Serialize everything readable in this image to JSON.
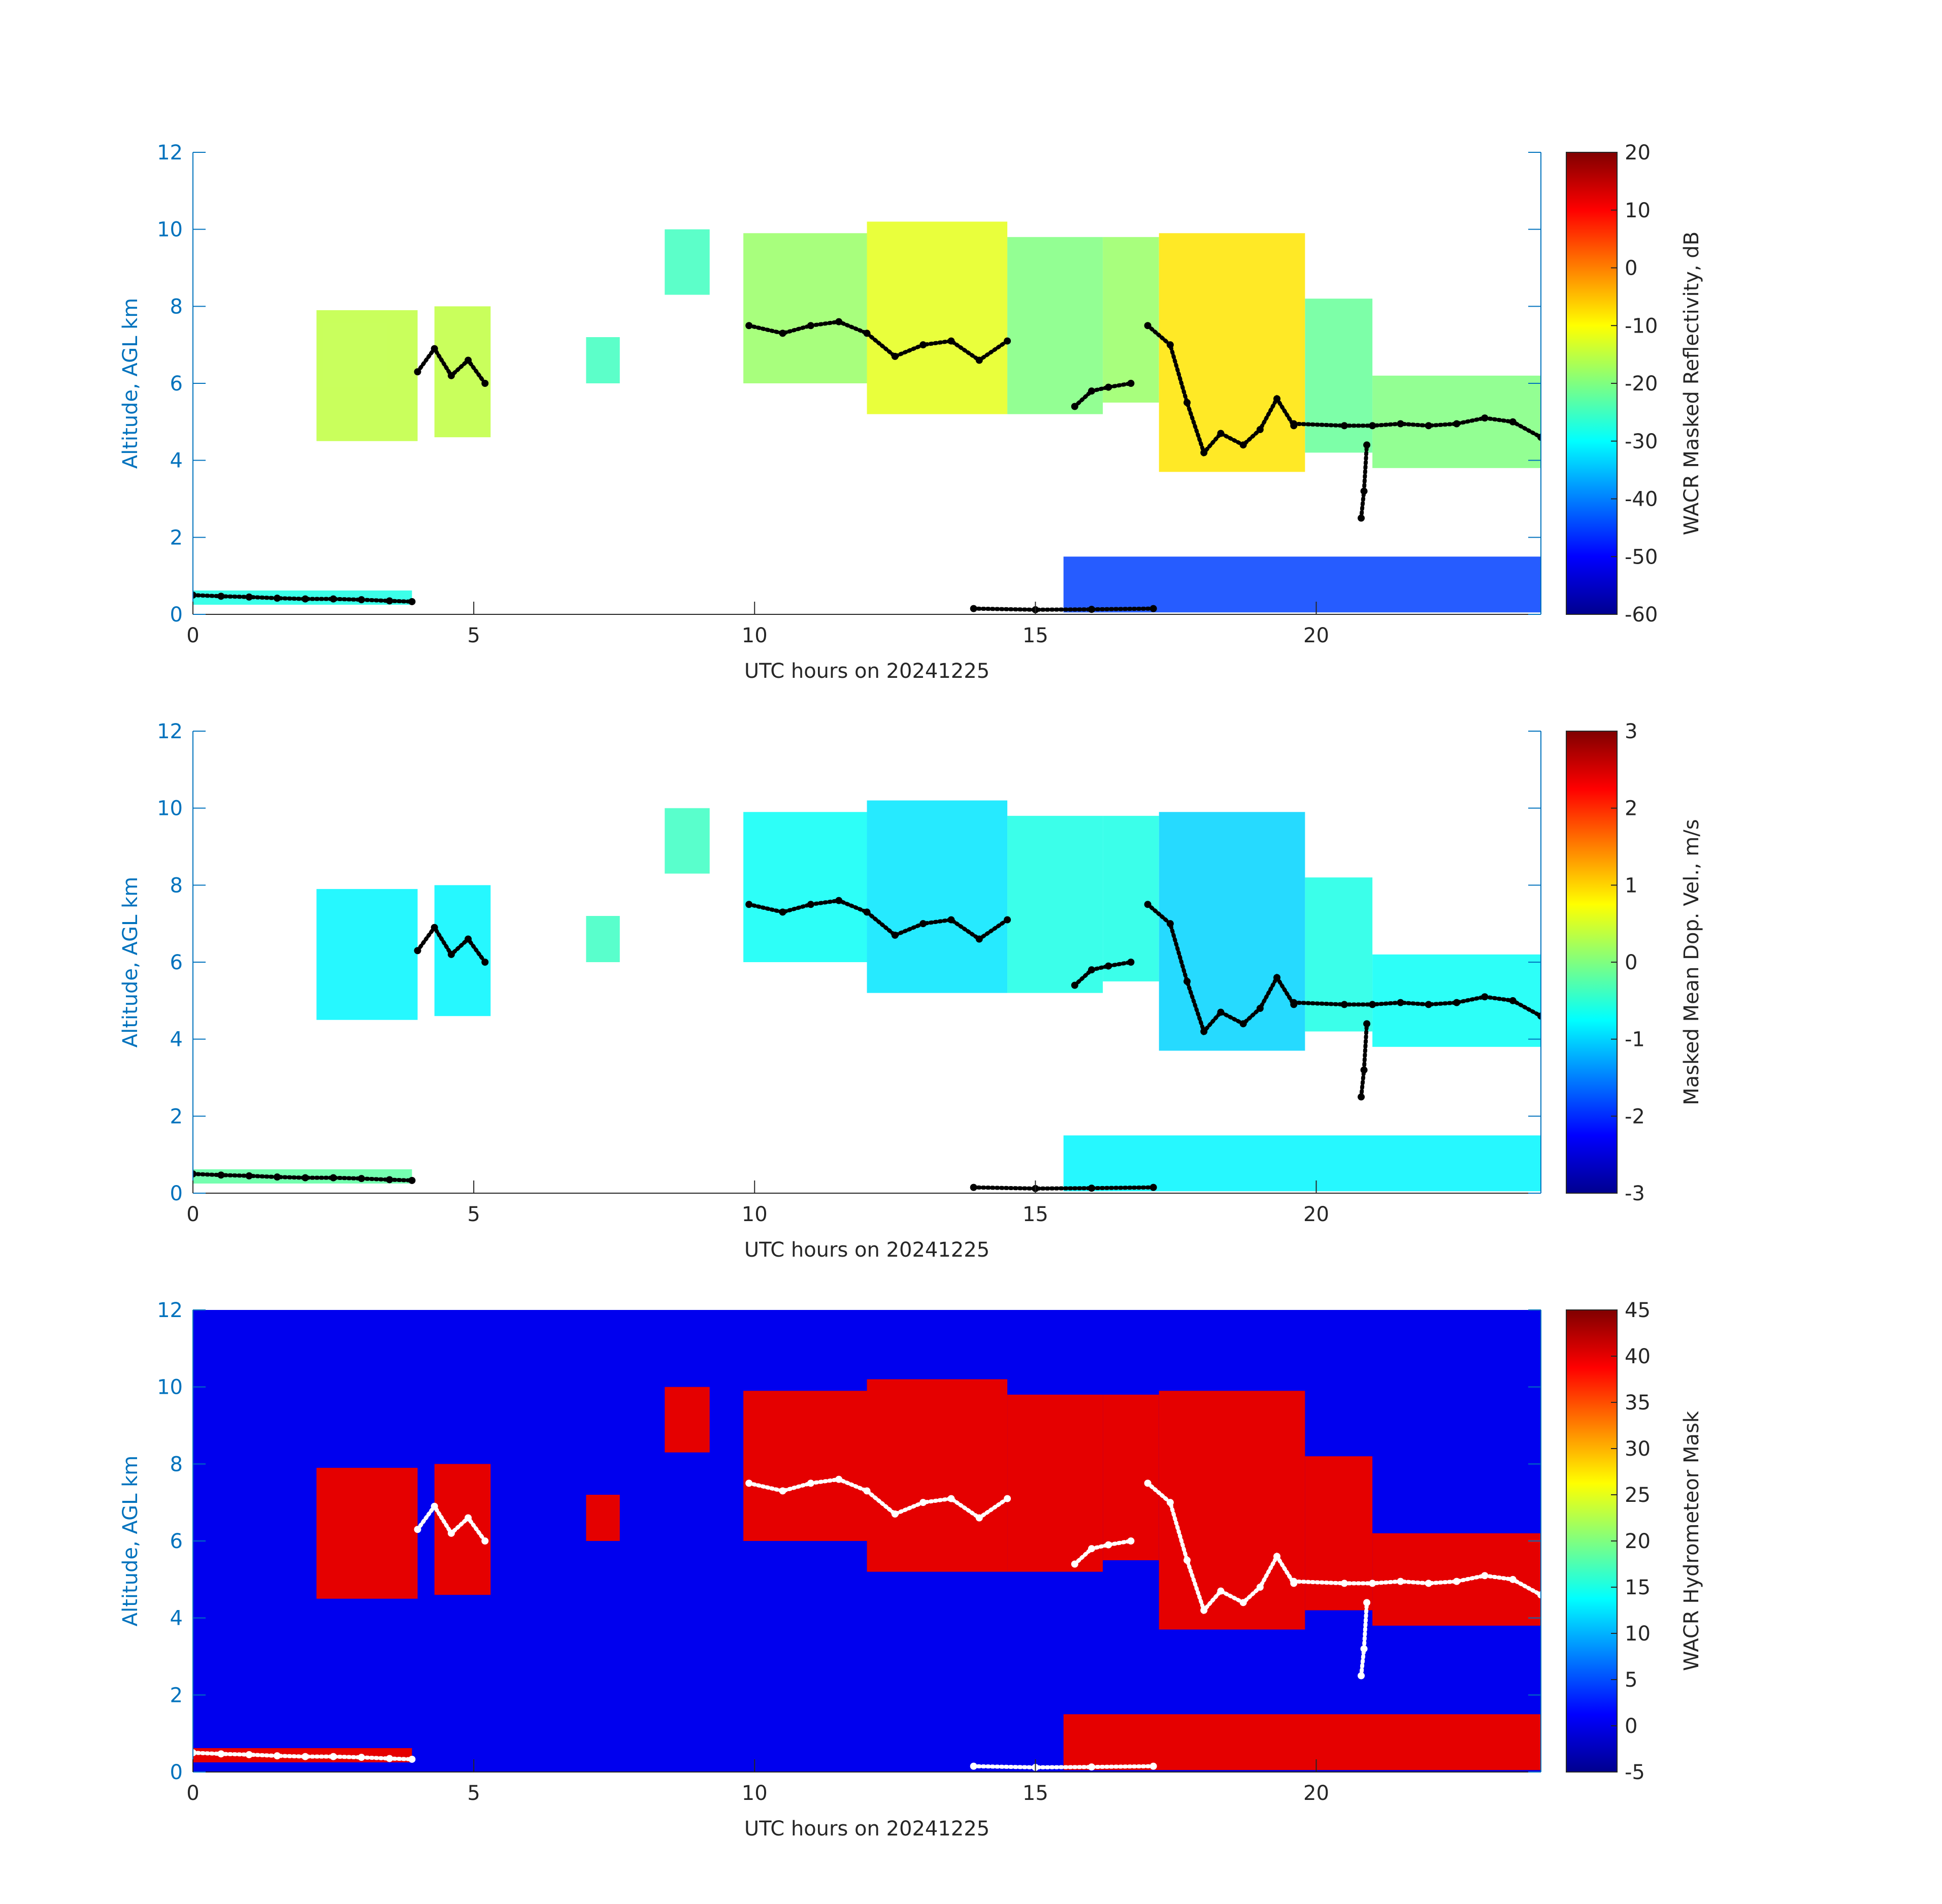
{
  "figure": {
    "colors": {
      "axis_blue": "#0072BD",
      "axis_black": "#262626",
      "mask_background": "#0000EE",
      "cloud_top_markers_dark": "#000000",
      "cloud_top_markers_light": "#FFFFFF"
    }
  },
  "chart_data": [
    {
      "type": "heatmap",
      "panel": "reflectivity",
      "xlabel": "UTC hours on 20241225",
      "ylabel": "Altitude, AGL km",
      "xlim": [
        0,
        24
      ],
      "ylim": [
        0,
        12
      ],
      "xticks": [
        0,
        5,
        10,
        15,
        20
      ],
      "yticks": [
        0,
        2,
        4,
        6,
        8,
        10,
        12
      ],
      "colorbar": {
        "label": "WACR Masked Reflectivity, dB",
        "colormap": "jet",
        "clim": [
          -60,
          20
        ],
        "ticks": [
          -60,
          -50,
          -40,
          -30,
          -20,
          -10,
          0,
          10,
          20
        ]
      },
      "cloud_regions": [
        {
          "x": [
            2.2,
            4.0
          ],
          "y": [
            4.5,
            7.9
          ],
          "value": -15
        },
        {
          "x": [
            4.3,
            5.3
          ],
          "y": [
            4.6,
            8.0
          ],
          "value": -15
        },
        {
          "x": [
            7.0,
            7.6
          ],
          "y": [
            6.0,
            7.2
          ],
          "value": -25
        },
        {
          "x": [
            8.4,
            9.2
          ],
          "y": [
            8.3,
            10.0
          ],
          "value": -25
        },
        {
          "x": [
            9.8,
            12.0
          ],
          "y": [
            6.0,
            9.9
          ],
          "value": -18
        },
        {
          "x": [
            12.0,
            14.5
          ],
          "y": [
            5.2,
            10.2
          ],
          "value": -12
        },
        {
          "x": [
            14.5,
            16.2
          ],
          "y": [
            5.2,
            9.8
          ],
          "value": -20
        },
        {
          "x": [
            16.2,
            17.2
          ],
          "y": [
            5.5,
            9.8
          ],
          "value": -18
        },
        {
          "x": [
            17.2,
            19.8
          ],
          "y": [
            3.7,
            9.9
          ],
          "value": -8
        },
        {
          "x": [
            19.8,
            21.0
          ],
          "y": [
            4.2,
            8.2
          ],
          "value": -22
        },
        {
          "x": [
            21.0,
            24.0
          ],
          "y": [
            3.8,
            6.2
          ],
          "value": -20
        },
        {
          "x": [
            0.0,
            3.9
          ],
          "y": [
            0.25,
            0.62
          ],
          "value": -28
        },
        {
          "x": [
            15.5,
            24.0
          ],
          "y": [
            0.05,
            1.5
          ],
          "value": -45
        }
      ],
      "cloud_top_height": [
        {
          "x": [
            0,
            0.5,
            1,
            1.5,
            2,
            2.5,
            3,
            3.5,
            3.9
          ],
          "y": [
            0.5,
            0.47,
            0.45,
            0.42,
            0.4,
            0.4,
            0.38,
            0.35,
            0.33
          ]
        },
        {
          "x": [
            4.0,
            4.3,
            4.6,
            4.9,
            5.2
          ],
          "y": [
            6.3,
            6.9,
            6.2,
            6.6,
            6.0
          ]
        },
        {
          "x": [
            9.9,
            10.5,
            11.0,
            11.5,
            12.0,
            12.5,
            13.0,
            13.5,
            14.0,
            14.5
          ],
          "y": [
            7.5,
            7.3,
            7.5,
            7.6,
            7.3,
            6.7,
            7.0,
            7.1,
            6.6,
            7.1
          ]
        },
        {
          "x": [
            15.7,
            16.0,
            16.3,
            16.7
          ],
          "y": [
            5.4,
            5.8,
            5.9,
            6.0
          ]
        },
        {
          "x": [
            17.0,
            17.4,
            17.7,
            18.0,
            18.3,
            18.7,
            19.0,
            19.3,
            19.6
          ],
          "y": [
            7.5,
            7.0,
            5.5,
            4.2,
            4.7,
            4.4,
            4.8,
            5.6,
            4.9
          ]
        },
        {
          "x": [
            19.6,
            20.5,
            21.0,
            21.5,
            22.0,
            22.5,
            23.0,
            23.5,
            24.0
          ],
          "y": [
            4.95,
            4.9,
            4.9,
            4.95,
            4.9,
            4.95,
            5.1,
            5.0,
            4.6
          ]
        },
        {
          "x": [
            13.9,
            15.0,
            16.0,
            17.1
          ],
          "y": [
            0.15,
            0.12,
            0.13,
            0.15
          ]
        },
        {
          "x": [
            20.8,
            20.85,
            20.9
          ],
          "y": [
            2.5,
            3.2,
            4.4
          ]
        }
      ]
    },
    {
      "type": "heatmap",
      "panel": "doppler_velocity",
      "xlabel": "UTC hours on 20241225",
      "ylabel": "Altitude, AGL km",
      "xlim": [
        0,
        24
      ],
      "ylim": [
        0,
        12
      ],
      "xticks": [
        0,
        5,
        10,
        15,
        20
      ],
      "yticks": [
        0,
        2,
        4,
        6,
        8,
        10,
        12
      ],
      "colorbar": {
        "label": "Masked Mean Dop. Vel., m/s",
        "colormap": "jet",
        "clim": [
          -3,
          3
        ],
        "ticks": [
          -3,
          -2,
          -1,
          0,
          1,
          2,
          3
        ]
      },
      "cloud_regions": [
        {
          "x": [
            2.2,
            4.0
          ],
          "y": [
            4.5,
            7.9
          ],
          "value": -0.8
        },
        {
          "x": [
            4.3,
            5.3
          ],
          "y": [
            4.6,
            8.0
          ],
          "value": -0.8
        },
        {
          "x": [
            7.0,
            7.6
          ],
          "y": [
            6.0,
            7.2
          ],
          "value": -0.4
        },
        {
          "x": [
            8.4,
            9.2
          ],
          "y": [
            8.3,
            10.0
          ],
          "value": -0.4
        },
        {
          "x": [
            9.8,
            12.0
          ],
          "y": [
            6.0,
            9.9
          ],
          "value": -0.7
        },
        {
          "x": [
            12.0,
            14.5
          ],
          "y": [
            5.2,
            10.2
          ],
          "value": -0.9
        },
        {
          "x": [
            14.5,
            16.2
          ],
          "y": [
            5.2,
            9.8
          ],
          "value": -0.6
        },
        {
          "x": [
            16.2,
            17.2
          ],
          "y": [
            5.5,
            9.8
          ],
          "value": -0.6
        },
        {
          "x": [
            17.2,
            19.8
          ],
          "y": [
            3.7,
            9.9
          ],
          "value": -1.0
        },
        {
          "x": [
            19.8,
            21.0
          ],
          "y": [
            4.2,
            8.2
          ],
          "value": -0.6
        },
        {
          "x": [
            21.0,
            24.0
          ],
          "y": [
            3.8,
            6.2
          ],
          "value": -0.7
        },
        {
          "x": [
            0.0,
            3.9
          ],
          "y": [
            0.25,
            0.62
          ],
          "value": -0.2
        },
        {
          "x": [
            15.5,
            24.0
          ],
          "y": [
            0.05,
            1.5
          ],
          "value": -0.8
        }
      ],
      "cloud_top_height": "same as reflectivity panel"
    },
    {
      "type": "heatmap",
      "panel": "hydrometeor_mask",
      "xlabel": "UTC hours on 20241225",
      "ylabel": "Altitude, AGL km",
      "xlim": [
        0,
        24
      ],
      "ylim": [
        0,
        12
      ],
      "xticks": [
        0,
        5,
        10,
        15,
        20
      ],
      "yticks": [
        0,
        2,
        4,
        6,
        8,
        10,
        12
      ],
      "colorbar": {
        "label": "WACR Hydrometeor Mask",
        "colormap": "jet",
        "clim": [
          -5,
          45
        ],
        "ticks": [
          -5,
          0,
          5,
          10,
          15,
          20,
          25,
          30,
          35,
          40,
          45
        ]
      },
      "background_value": 0,
      "hydrometeor_value": 40,
      "cloud_regions": "same as reflectivity panel",
      "cloud_top_height": "same as reflectivity panel"
    }
  ]
}
